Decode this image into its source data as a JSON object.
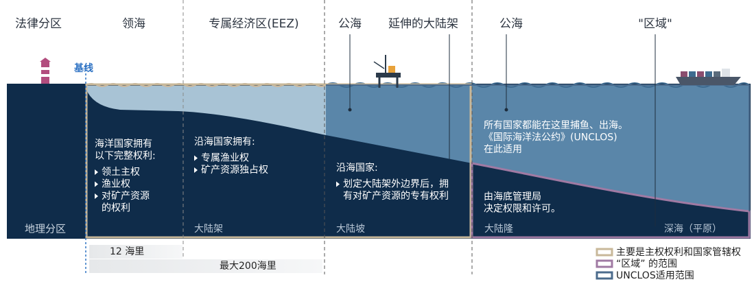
{
  "header": {
    "zones": [
      "法律分区",
      "领海",
      "专属经济区(EEZ)",
      "公海",
      "延伸的大陆架",
      "公海",
      "\"区域\""
    ]
  },
  "baseline_label": "基线",
  "geo_label": "地理分区",
  "panels": [
    {
      "heading": [
        "海洋国家拥有",
        "以下完整权利:"
      ],
      "bullets": [
        [
          "领土主权"
        ],
        [
          "渔业权"
        ],
        [
          "对矿产资源",
          "的权利"
        ]
      ]
    },
    {
      "heading": [
        "沿海国家拥有:"
      ],
      "bullets": [
        [
          "专属渔业权"
        ],
        [
          "矿产资源独占权"
        ]
      ]
    },
    {
      "heading": [
        "沿海国家:"
      ],
      "bullets": [
        [
          "划定大陆架外边界后，拥",
          "有对矿产资源的专有权利"
        ]
      ]
    },
    {
      "heading": [
        "所有国家都能在这里捕鱼、出海。",
        "《国际海洋法公约》(UNCLOS)",
        "在此适用"
      ],
      "bullets": []
    },
    {
      "heading": [
        "由海底管理局",
        "决定权限和许可。"
      ],
      "bullets": []
    }
  ],
  "geo_zones": [
    "大陆架",
    "大陆坡",
    "大陆隆",
    "深海（平原）"
  ],
  "distances": [
    "12 海里",
    "最大200海里"
  ],
  "legend": [
    "主要是主权权利和国家管辖权",
    "“区域” 的范围",
    "UNCLOS适用范围"
  ]
}
